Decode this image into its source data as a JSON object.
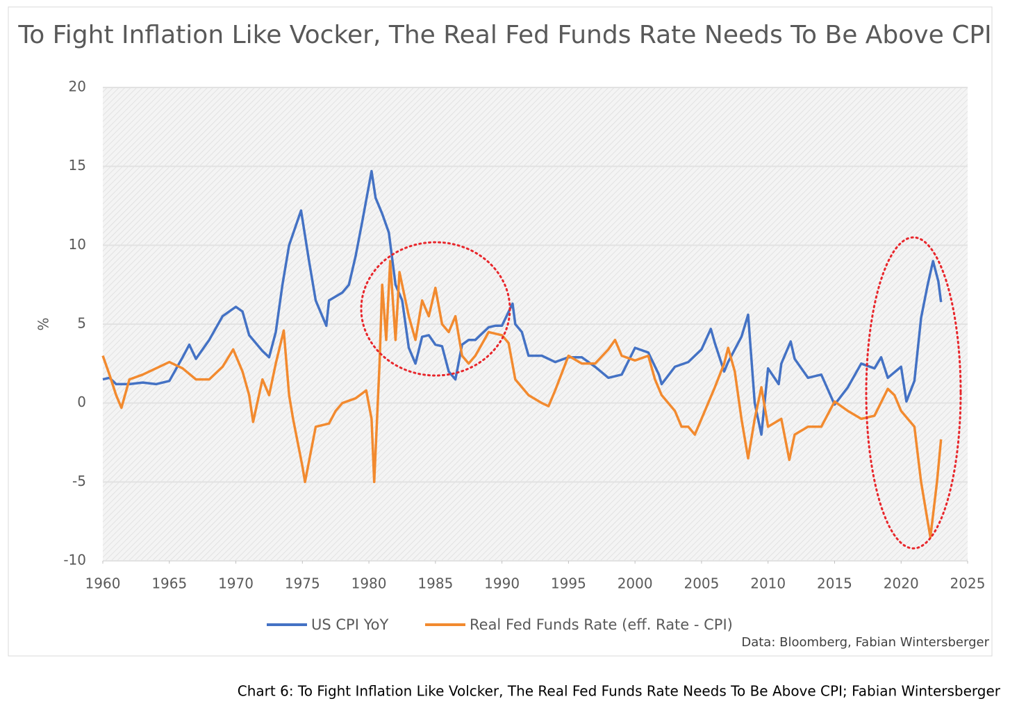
{
  "chart_data": {
    "type": "line",
    "title": "To Fight Inflation Like Vocker, The Real Fed Funds Rate Needs To Be Above CPI",
    "ylabel": "%",
    "source": "Data: Bloomberg, Fabian Wintersberger",
    "caption": "Chart 6: To Fight Inflation Like Volcker, The Real Fed Funds Rate Needs To Be Above CPI; Fabian Wintersberger",
    "xlim": [
      1960,
      2025
    ],
    "xticks": [
      1960,
      1965,
      1970,
      1975,
      1980,
      1985,
      1990,
      1995,
      2000,
      2005,
      2010,
      2015,
      2020,
      2025
    ],
    "ylim": [
      -10,
      20
    ],
    "yticks": [
      -10,
      -5,
      0,
      5,
      10,
      15,
      20
    ],
    "grid": true,
    "series": [
      {
        "name": "US CPI YoY",
        "color": "#4472c4",
        "x": [
          1960,
          1960.5,
          1961,
          1962,
          1963,
          1964,
          1965,
          1966,
          1966.5,
          1967,
          1968,
          1969,
          1970,
          1970.5,
          1971,
          1972,
          1972.5,
          1973,
          1973.5,
          1974,
          1974.9,
          1975.5,
          1976,
          1976.8,
          1977,
          1978,
          1978.5,
          1979,
          1979.5,
          1980.2,
          1980.5,
          1981,
          1981.5,
          1982,
          1982.5,
          1983,
          1983.5,
          1984,
          1984.5,
          1985,
          1985.5,
          1986,
          1986.5,
          1987,
          1987.5,
          1988,
          1989,
          1989.5,
          1990,
          1990.8,
          1991,
          1991.5,
          1992,
          1993,
          1994,
          1995,
          1996,
          1997,
          1998,
          1999,
          2000,
          2001,
          2001.8,
          2002,
          2003,
          2004,
          2005,
          2005.7,
          2006,
          2006.7,
          2007,
          2008,
          2008.5,
          2009,
          2009.5,
          2010,
          2010.8,
          2011,
          2011.7,
          2012,
          2013,
          2014,
          2015,
          2016,
          2017,
          2018,
          2018.5,
          2019,
          2020,
          2020.4,
          2021,
          2021.5,
          2022,
          2022.4,
          2022.8,
          2023
        ],
        "values": [
          1.5,
          1.6,
          1.2,
          1.2,
          1.3,
          1.2,
          1.4,
          2.9,
          3.7,
          2.8,
          4.0,
          5.5,
          6.1,
          5.8,
          4.3,
          3.3,
          2.9,
          4.5,
          7.5,
          10.0,
          12.2,
          9.0,
          6.5,
          4.9,
          6.5,
          7.0,
          7.5,
          9.3,
          11.5,
          14.7,
          13,
          12,
          10.8,
          7.5,
          6.5,
          3.5,
          2.5,
          4.2,
          4.3,
          3.7,
          3.6,
          2.0,
          1.5,
          3.7,
          4.0,
          4.0,
          4.8,
          4.9,
          4.9,
          6.3,
          5.0,
          4.5,
          3.0,
          3.0,
          2.6,
          2.9,
          2.9,
          2.3,
          1.6,
          1.8,
          3.5,
          3.2,
          1.8,
          1.2,
          2.3,
          2.6,
          3.4,
          4.7,
          3.8,
          2.0,
          2.6,
          4.2,
          5.6,
          0.0,
          -2.0,
          2.2,
          1.2,
          2.5,
          3.9,
          2.8,
          1.6,
          1.8,
          -0.1,
          1.0,
          2.5,
          2.2,
          2.9,
          1.6,
          2.3,
          0.1,
          1.4,
          5.4,
          7.5,
          9.0,
          7.7,
          6.4
        ]
      },
      {
        "name": "Real Fed Funds Rate (eff. Rate - CPI)",
        "color": "#f28a2f",
        "x": [
          1960,
          1960.5,
          1961,
          1961.4,
          1962,
          1963,
          1964,
          1965,
          1966,
          1967,
          1968,
          1969,
          1969.8,
          1970.5,
          1971,
          1971.3,
          1972,
          1972.5,
          1973,
          1973.6,
          1974,
          1974.3,
          1975,
          1975.2,
          1976,
          1977,
          1977.5,
          1978,
          1979,
          1979.8,
          1980.2,
          1980.4,
          1980.8,
          1981,
          1981.3,
          1981.6,
          1982,
          1982.3,
          1983,
          1983.5,
          1984,
          1984.5,
          1985,
          1985.5,
          1986,
          1986.5,
          1987,
          1987.5,
          1988,
          1989,
          1990,
          1990.5,
          1991,
          1991.5,
          1992,
          1993,
          1993.5,
          1994,
          1995,
          1996,
          1997,
          1998,
          1998.5,
          1999,
          2000,
          2001,
          2001.5,
          2002,
          2003,
          2003.5,
          2004,
          2004.5,
          2005,
          2006,
          2006.7,
          2007,
          2007.5,
          2008,
          2008.5,
          2009,
          2009.5,
          2010,
          2011,
          2011.6,
          2012,
          2013,
          2014,
          2015,
          2016,
          2017,
          2018,
          2019,
          2019.5,
          2020,
          2020.5,
          2021,
          2021.5,
          2022,
          2022.2,
          2022.7,
          2023
        ],
        "values": [
          3.0,
          1.8,
          0.5,
          -0.3,
          1.5,
          1.8,
          2.2,
          2.6,
          2.2,
          1.5,
          1.5,
          2.3,
          3.4,
          2.0,
          0.5,
          -1.2,
          1.5,
          0.5,
          2.5,
          4.6,
          0.5,
          -1.0,
          -4.0,
          -5.0,
          -1.5,
          -1.3,
          -0.5,
          0.0,
          0.3,
          0.8,
          -1.0,
          -5.0,
          2.5,
          7.5,
          4,
          9.0,
          4.0,
          8.3,
          5.5,
          4.0,
          6.5,
          5.5,
          7.3,
          5.0,
          4.5,
          5.5,
          3.0,
          2.5,
          3.0,
          4.5,
          4.3,
          3.8,
          1.5,
          1.0,
          0.5,
          0.0,
          -0.2,
          0.8,
          3.0,
          2.5,
          2.5,
          3.4,
          4.0,
          3.0,
          2.7,
          3.0,
          1.5,
          0.5,
          -0.5,
          -1.5,
          -1.5,
          -2.0,
          -1.0,
          1.0,
          2.5,
          3.5,
          2.0,
          -1.0,
          -3.5,
          -1.0,
          1.0,
          -1.5,
          -1.0,
          -3.6,
          -2.0,
          -1.5,
          -1.5,
          0.1,
          -0.5,
          -1.0,
          -0.8,
          0.9,
          0.5,
          -0.5,
          -1.0,
          -1.5,
          -5.0,
          -7.5,
          -8.5,
          -5,
          -2.3
        ]
      }
    ]
  }
}
